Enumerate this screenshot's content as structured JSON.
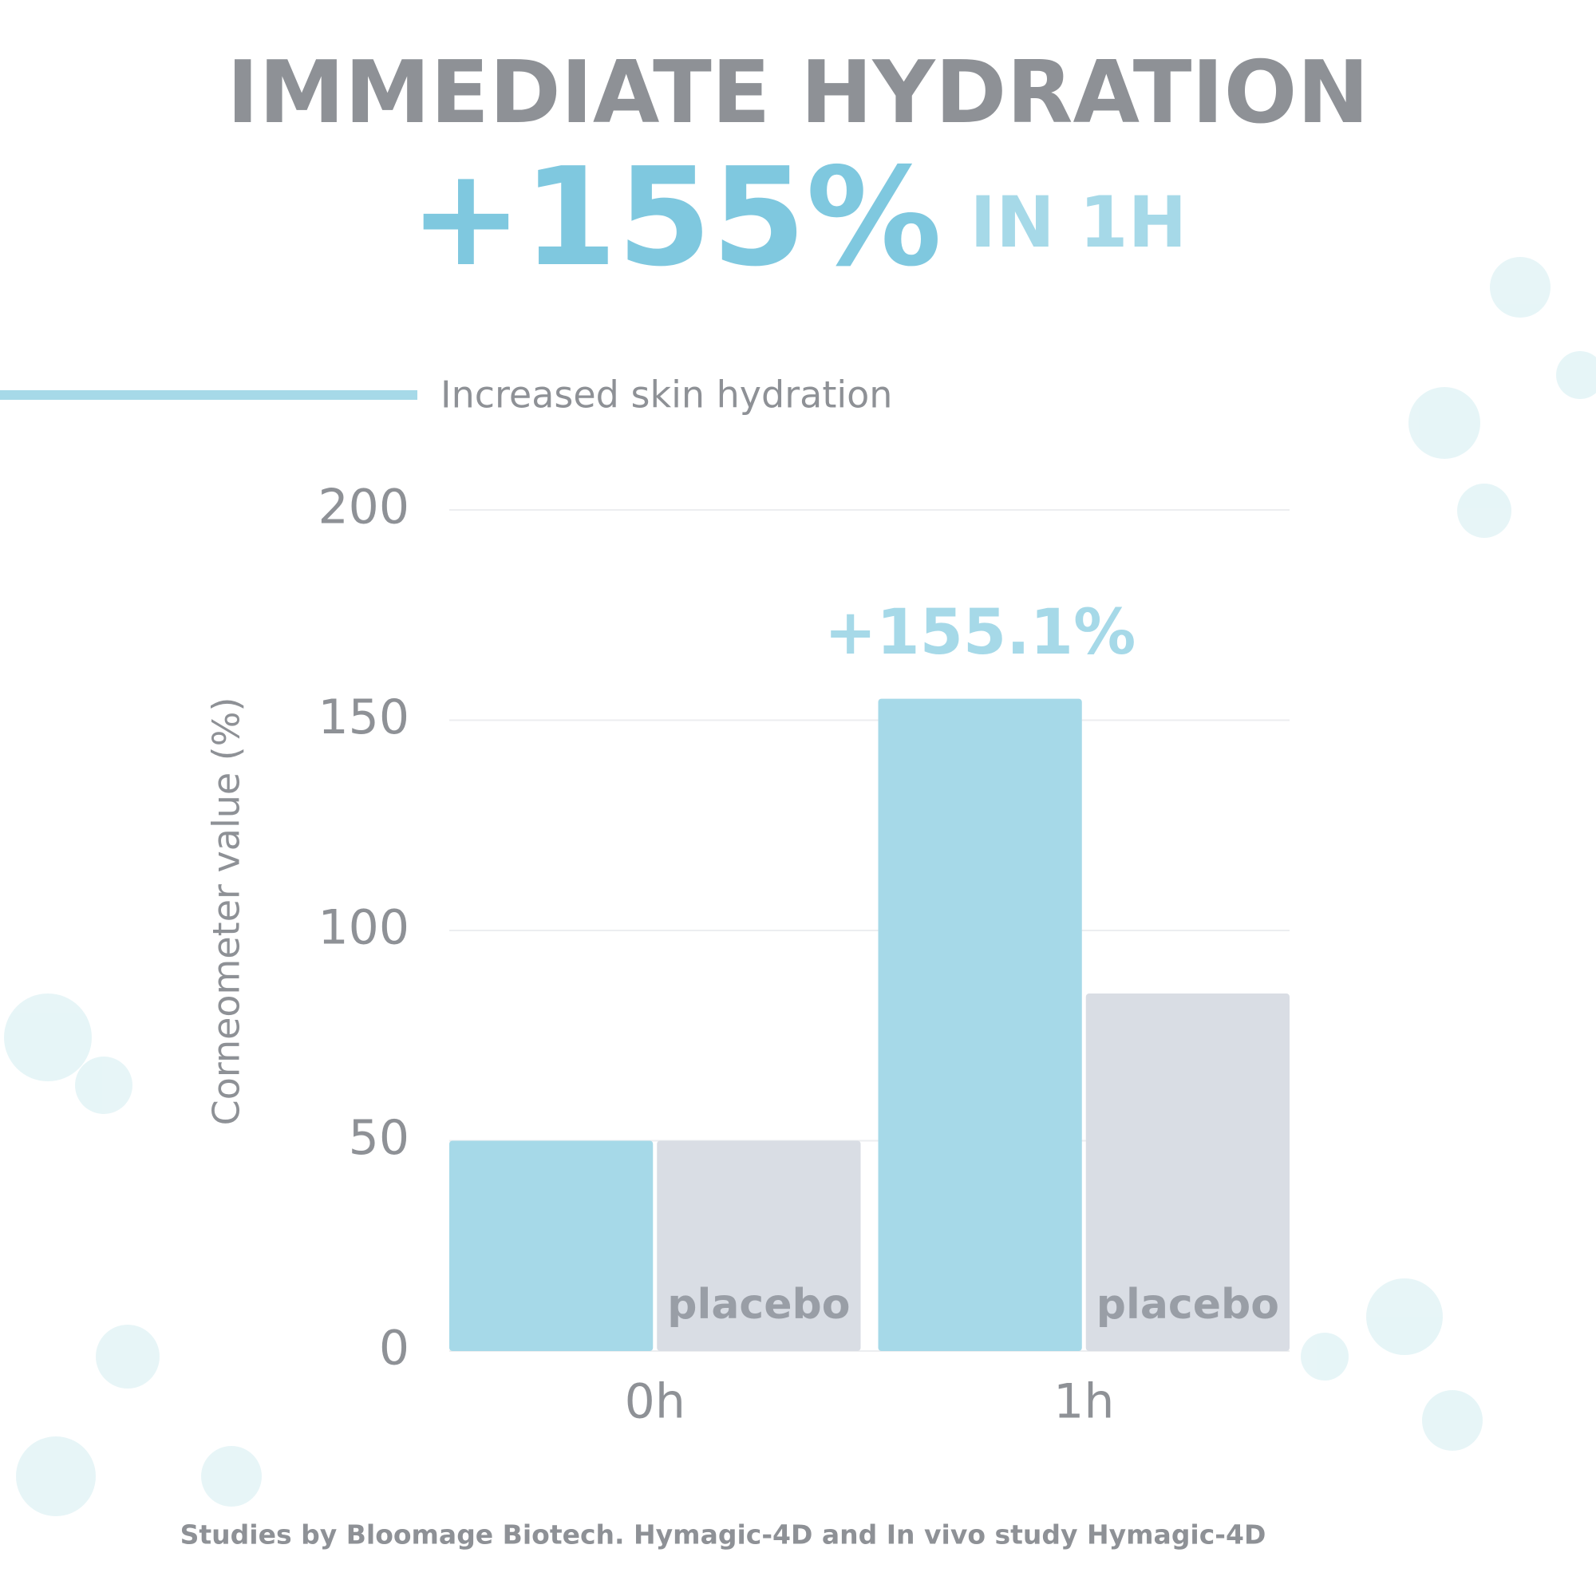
{
  "chart_data": {
    "type": "bar",
    "title": "IMMEDIATE HYDRATION",
    "headline": "+155%",
    "headline_suffix": "IN 1H",
    "subtitle": "Increased skin hydration",
    "y_label": "Corneometer value (%)",
    "categories": [
      "0h",
      "1h"
    ],
    "series": [
      {
        "color": "#a6d9e8",
        "values": [
          50,
          155.1
        ],
        "value_labels": [
          null,
          "+155.1%"
        ]
      },
      {
        "name": "placebo",
        "color": "#d9dde4",
        "values": [
          50,
          85
        ]
      }
    ],
    "ylim": [
      0,
      200
    ],
    "yticks": [
      0,
      50,
      100,
      150,
      200
    ],
    "grid": true,
    "footnote": "Studies by Bloomage Biotech. Hymagic-4D and In vivo study Hymagic-4D"
  }
}
